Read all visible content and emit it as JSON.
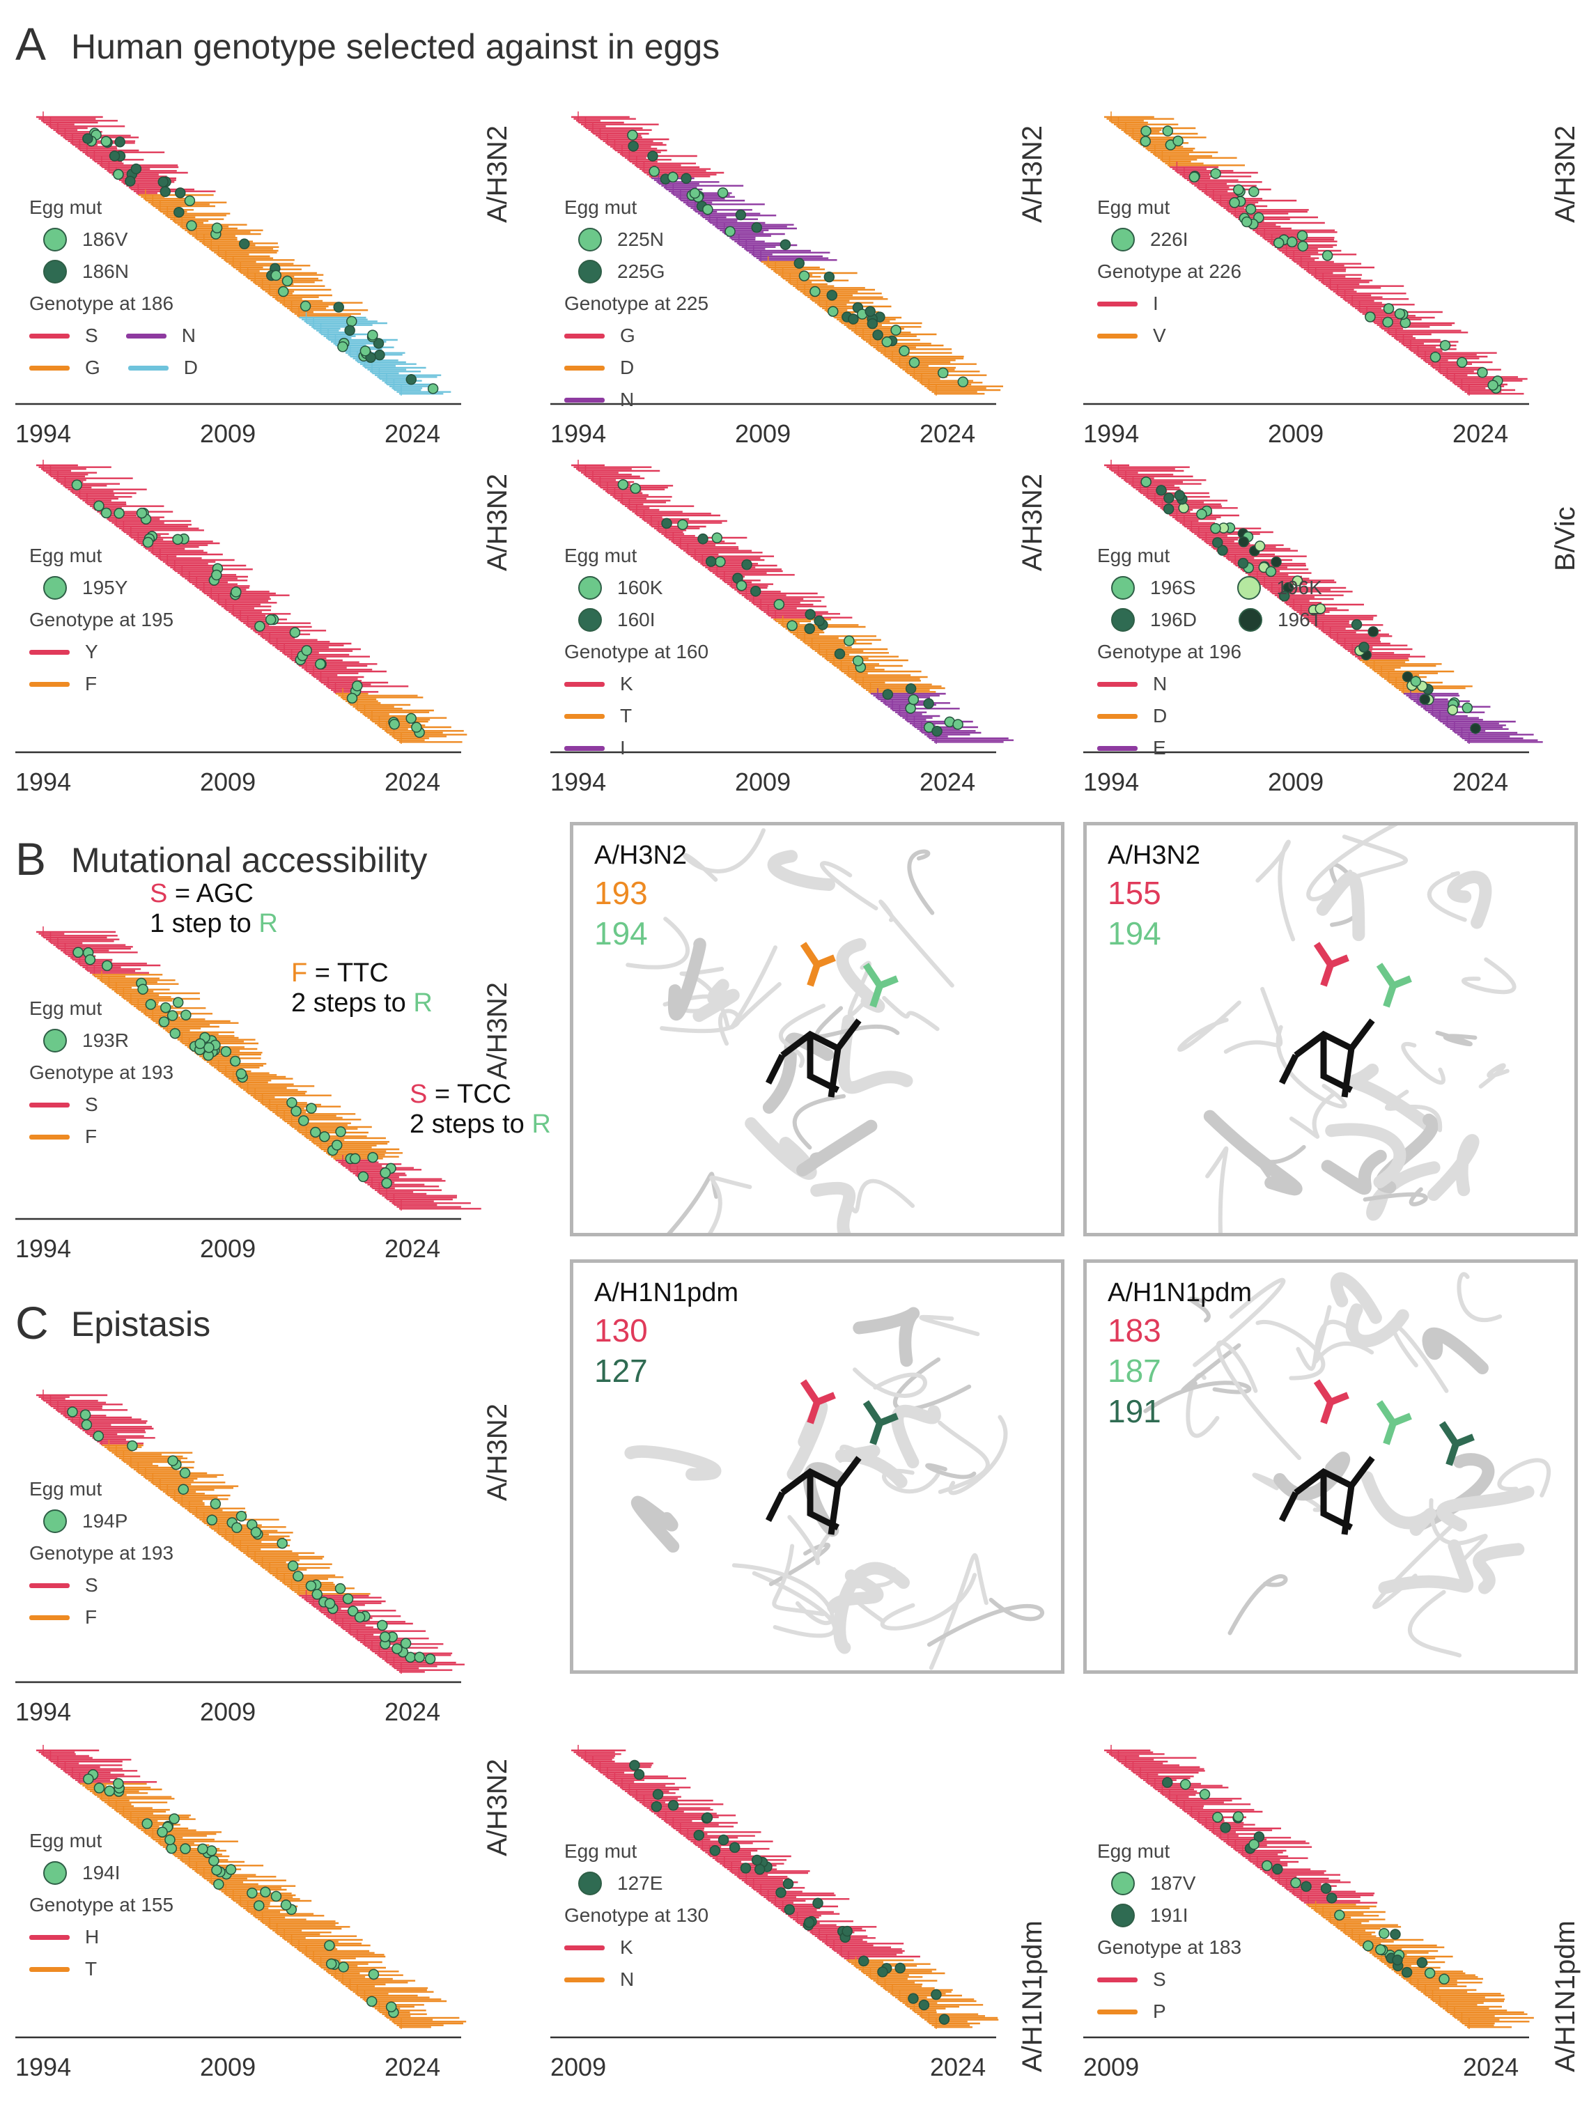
{
  "colors": {
    "red": "#e03a5a",
    "orange": "#ee8a22",
    "purple": "#8e3aa0",
    "blue": "#6ec3dc",
    "light_green": "#6cc88a",
    "dark_green": "#2f6b52",
    "pale_green": "#b5e8a0",
    "text": "#333333"
  },
  "sections": {
    "A": {
      "letter": "A",
      "title": "Human genotype selected against in eggs"
    },
    "B": {
      "letter": "B",
      "title": "Mutational accessibility"
    },
    "C": {
      "letter": "C",
      "title": "Epistasis"
    }
  },
  "axis_years_full": [
    "1994",
    "2009",
    "2024"
  ],
  "axis_years_pdm": [
    "2009",
    "2024"
  ],
  "panels": [
    {
      "id": "p186",
      "subtype": "A/H3N2",
      "egg_title": "Egg mut",
      "egg": [
        {
          "label": "186V",
          "color": "#6cc88a"
        },
        {
          "label": "186N",
          "color": "#2f6b52"
        }
      ],
      "geno_title": "Genotype at 186",
      "geno": [
        {
          "label": "S",
          "color": "#e03a5a"
        },
        {
          "label": "N",
          "color": "#8e3aa0"
        },
        {
          "label": "G",
          "color": "#ee8a22"
        },
        {
          "label": "D",
          "color": "#6ec3dc"
        }
      ]
    },
    {
      "id": "p225",
      "subtype": "A/H3N2",
      "egg_title": "Egg mut",
      "egg": [
        {
          "label": "225N",
          "color": "#6cc88a"
        },
        {
          "label": "225G",
          "color": "#2f6b52"
        }
      ],
      "geno_title": "Genotype at 225",
      "geno": [
        {
          "label": "G",
          "color": "#e03a5a"
        },
        {
          "label": "D",
          "color": "#ee8a22"
        },
        {
          "label": "N",
          "color": "#8e3aa0"
        }
      ]
    },
    {
      "id": "p226",
      "subtype": "A/H3N2",
      "egg_title": "Egg mut",
      "egg": [
        {
          "label": "226I",
          "color": "#6cc88a"
        }
      ],
      "geno_title": "Genotype at 226",
      "geno": [
        {
          "label": "I",
          "color": "#e03a5a"
        },
        {
          "label": "V",
          "color": "#ee8a22"
        }
      ]
    },
    {
      "id": "p195",
      "subtype": "A/H3N2",
      "egg_title": "Egg mut",
      "egg": [
        {
          "label": "195Y",
          "color": "#6cc88a"
        }
      ],
      "geno_title": "Genotype at 195",
      "geno": [
        {
          "label": "Y",
          "color": "#e03a5a"
        },
        {
          "label": "F",
          "color": "#ee8a22"
        }
      ]
    },
    {
      "id": "p160",
      "subtype": "A/H3N2",
      "egg_title": "Egg mut",
      "egg": [
        {
          "label": "160K",
          "color": "#6cc88a"
        },
        {
          "label": "160I",
          "color": "#2f6b52"
        }
      ],
      "geno_title": "Genotype at 160",
      "geno": [
        {
          "label": "K",
          "color": "#e03a5a"
        },
        {
          "label": "T",
          "color": "#ee8a22"
        },
        {
          "label": "I",
          "color": "#8e3aa0"
        }
      ]
    },
    {
      "id": "p196",
      "subtype": "B/Vic",
      "egg_title": "Egg mut",
      "egg": [
        {
          "label": "196S",
          "color": "#6cc88a"
        },
        {
          "label": "196K",
          "color": "#b5e8a0"
        },
        {
          "label": "196D",
          "color": "#2f6b52"
        },
        {
          "label": "196T",
          "color": "#1f3f30"
        }
      ],
      "geno_title": "Genotype at 196",
      "geno": [
        {
          "label": "N",
          "color": "#e03a5a"
        },
        {
          "label": "D",
          "color": "#ee8a22"
        },
        {
          "label": "E",
          "color": "#8e3aa0"
        }
      ]
    },
    {
      "id": "p193",
      "subtype": "A/H3N2",
      "egg_title": "Egg mut",
      "egg": [
        {
          "label": "193R",
          "color": "#6cc88a"
        }
      ],
      "geno_title": "Genotype at 193",
      "geno": [
        {
          "label": "S",
          "color": "#e03a5a"
        },
        {
          "label": "F",
          "color": "#ee8a22"
        }
      ]
    },
    {
      "id": "p194P",
      "subtype": "A/H3N2",
      "egg_title": "Egg mut",
      "egg": [
        {
          "label": "194P",
          "color": "#6cc88a"
        }
      ],
      "geno_title": "Genotype at 193",
      "geno": [
        {
          "label": "S",
          "color": "#e03a5a"
        },
        {
          "label": "F",
          "color": "#ee8a22"
        }
      ]
    },
    {
      "id": "p194I",
      "subtype": "A/H3N2",
      "egg_title": "Egg mut",
      "egg": [
        {
          "label": "194I",
          "color": "#6cc88a"
        }
      ],
      "geno_title": "Genotype at 155",
      "geno": [
        {
          "label": "H",
          "color": "#e03a5a"
        },
        {
          "label": "T",
          "color": "#ee8a22"
        }
      ]
    },
    {
      "id": "p127",
      "subtype": "A/H1N1pdm",
      "egg_title": "Egg mut",
      "egg": [
        {
          "label": "127E",
          "color": "#2f6b52"
        }
      ],
      "geno_title": "Genotype at 130",
      "geno": [
        {
          "label": "K",
          "color": "#e03a5a"
        },
        {
          "label": "N",
          "color": "#ee8a22"
        }
      ]
    },
    {
      "id": "p183",
      "subtype": "A/H1N1pdm",
      "egg_title": "Egg mut",
      "egg": [
        {
          "label": "187V",
          "color": "#6cc88a"
        },
        {
          "label": "191I",
          "color": "#2f6b52"
        }
      ],
      "geno_title": "Genotype at 183",
      "geno": [
        {
          "label": "S",
          "color": "#e03a5a"
        },
        {
          "label": "P",
          "color": "#ee8a22"
        }
      ]
    }
  ],
  "annotations": {
    "a1_codon": "S",
    "a1_eq": " = AGC",
    "a1_steps": "1 step to ",
    "a1_target": "R",
    "a2_codon": "F",
    "a2_eq": " = TTC",
    "a2_steps": "2 steps to ",
    "a2_target": "R",
    "a3_codon": "S",
    "a3_eq": " = TCC",
    "a3_steps": "2 steps to ",
    "a3_target": "R"
  },
  "structures": [
    {
      "subtype": "A/H3N2",
      "nums": [
        {
          "n": "193",
          "color": "#ee8a22"
        },
        {
          "n": "194",
          "color": "#6cc88a"
        }
      ]
    },
    {
      "subtype": "A/H3N2",
      "nums": [
        {
          "n": "155",
          "color": "#e03a5a"
        },
        {
          "n": "194",
          "color": "#6cc88a"
        }
      ]
    },
    {
      "subtype": "A/H1N1pdm",
      "nums": [
        {
          "n": "130",
          "color": "#e03a5a"
        },
        {
          "n": "127",
          "color": "#2f6b52"
        }
      ]
    },
    {
      "subtype": "A/H1N1pdm",
      "nums": [
        {
          "n": "183",
          "color": "#e03a5a"
        },
        {
          "n": "187",
          "color": "#6cc88a"
        },
        {
          "n": "191",
          "color": "#2f6b52"
        }
      ]
    }
  ]
}
